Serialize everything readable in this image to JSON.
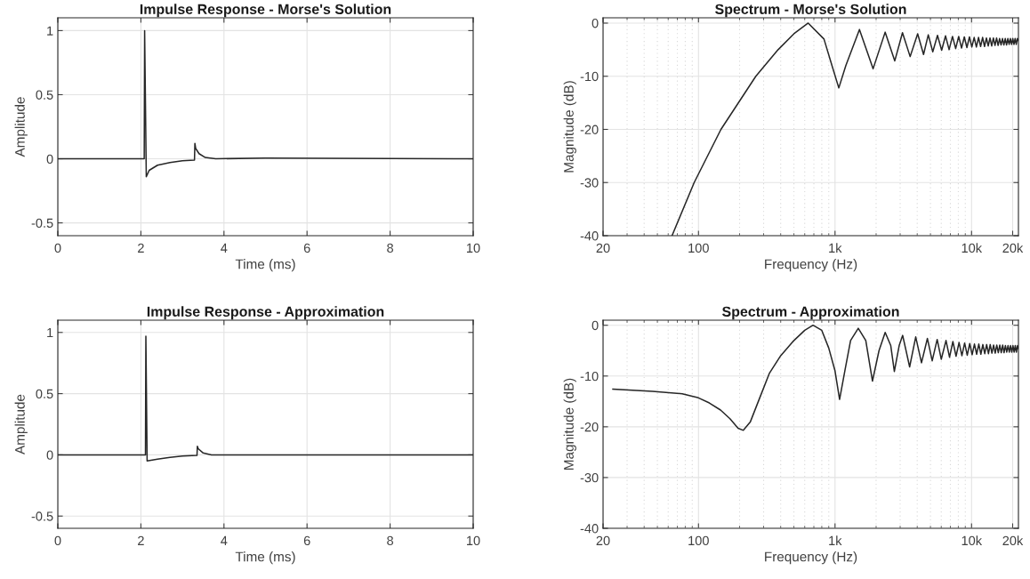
{
  "chart_data": [
    {
      "type": "line",
      "title": "Impulse Response - Morse's Solution",
      "xlabel": "Time (ms)",
      "ylabel": "Amplitude",
      "grid": true,
      "xlim": [
        0,
        10
      ],
      "xticks": [
        0,
        2,
        4,
        6,
        8,
        10
      ],
      "ylim": [
        -0.6,
        1.1
      ],
      "yticks": [
        -0.5,
        0,
        0.5,
        1
      ],
      "series": [
        {
          "color": "#262626",
          "x": [
            0,
            2.08,
            2.09,
            2.13,
            2.2,
            2.4,
            2.7,
            3.0,
            3.29,
            3.3,
            3.32,
            3.4,
            3.55,
            3.8,
            5,
            10
          ],
          "values": [
            0,
            0,
            1,
            -0.14,
            -0.09,
            -0.05,
            -0.03,
            -0.015,
            -0.01,
            0.12,
            0.08,
            0.04,
            0.01,
            0,
            0.005,
            0
          ]
        }
      ]
    },
    {
      "type": "line",
      "title": "Spectrum - Morse's Solution",
      "xlabel": "Frequency (Hz)",
      "ylabel": "Magnitude (dB)",
      "grid": true,
      "log": "x",
      "xlim": [
        20,
        22050
      ],
      "xticks": [
        {
          "value": 20,
          "label": "20"
        },
        100,
        {
          "value": 1000,
          "label": "1k"
        },
        {
          "value": 10000,
          "label": "10k"
        },
        {
          "value": 20000,
          "label": "20k"
        }
      ],
      "ylim": [
        -40,
        1
      ],
      "yticks": [
        -40,
        -30,
        -20,
        -10,
        0
      ],
      "series": [
        {
          "color": "#262626",
          "x": [
            64,
            93,
            146,
            263,
            383,
            500,
            636,
            830,
            950,
            1066,
            1200,
            1510,
            1900,
            2330,
            2740,
            3120,
            3550,
            4030,
            4450,
            4820,
            5200,
            5630,
            6040,
            6450,
            6850,
            7250,
            7650,
            8050,
            8450,
            8850,
            9250,
            9650,
            10050,
            10450,
            10850,
            11250,
            11650,
            12050,
            12450,
            12850,
            13250,
            13650,
            14050,
            14450,
            14850,
            15250,
            15650,
            16050,
            16450,
            16850,
            17250,
            17650,
            18050,
            18450,
            18850,
            19250,
            19650,
            20050,
            20450,
            20850,
            21250,
            21650,
            22050
          ],
          "values": [
            -40,
            -30,
            -20,
            -10,
            -5,
            -2,
            0,
            -3,
            -8,
            -12.2,
            -8,
            -1.2,
            -8.6,
            -1.7,
            -7.1,
            -1.8,
            -6.3,
            -2,
            -5.9,
            -2.2,
            -5.4,
            -2.3,
            -5.1,
            -2.4,
            -5.0,
            -2.5,
            -4.8,
            -2.5,
            -4.7,
            -2.6,
            -4.6,
            -2.6,
            -4.5,
            -2.7,
            -4.5,
            -2.7,
            -4.4,
            -2.7,
            -4.4,
            -2.8,
            -4.3,
            -2.8,
            -4.3,
            -2.8,
            -4.2,
            -2.8,
            -4.2,
            -2.9,
            -4.1,
            -2.9,
            -4.1,
            -2.9,
            -4.1,
            -2.9,
            -4.0,
            -2.9,
            -4.0,
            -2.9,
            -4.0,
            -2.9,
            -4.0,
            -2.9,
            -3.3
          ]
        }
      ]
    },
    {
      "type": "line",
      "title": "Impulse Response - Approximation",
      "xlabel": "Time (ms)",
      "ylabel": "Amplitude",
      "grid": true,
      "xlim": [
        0,
        10
      ],
      "xticks": [
        0,
        2,
        4,
        6,
        8,
        10
      ],
      "ylim": [
        -0.6,
        1.1
      ],
      "yticks": [
        -0.5,
        0,
        0.5,
        1
      ],
      "series": [
        {
          "color": "#262626",
          "x": [
            0,
            2.11,
            2.12,
            2.15,
            2.4,
            2.7,
            3.0,
            3.35,
            3.36,
            3.38,
            3.5,
            3.7,
            5,
            10
          ],
          "values": [
            0,
            0,
            0.97,
            -0.05,
            -0.035,
            -0.02,
            -0.01,
            -0.005,
            0.07,
            0.05,
            0.015,
            0,
            0,
            0
          ]
        }
      ]
    },
    {
      "type": "line",
      "title": "Spectrum - Approximation",
      "xlabel": "Frequency (Hz)",
      "ylabel": "Magnitude (dB)",
      "grid": true,
      "log": "x",
      "xlim": [
        20,
        22050
      ],
      "xticks": [
        {
          "value": 20,
          "label": "20"
        },
        100,
        {
          "value": 1000,
          "label": "1k"
        },
        {
          "value": 10000,
          "label": "10k"
        },
        {
          "value": 20000,
          "label": "20k"
        }
      ],
      "ylim": [
        -40,
        1
      ],
      "yticks": [
        -40,
        -30,
        -20,
        -10,
        0
      ],
      "series": [
        {
          "color": "#262626",
          "x": [
            23.6,
            46,
            76,
            100,
            120,
            145,
            170,
            195,
            213,
            240,
            280,
            330,
            400,
            500,
            600,
            690,
            800,
            900,
            1000,
            1080,
            1180,
            1300,
            1480,
            1680,
            1880,
            2100,
            2330,
            2560,
            2720,
            2950,
            3130,
            3520,
            3900,
            4300,
            4750,
            5150,
            5600,
            6000,
            6500,
            6900,
            7300,
            7700,
            8100,
            8500,
            8900,
            9300,
            9700,
            10100,
            10500,
            10900,
            11300,
            11700,
            12100,
            12500,
            12900,
            13300,
            13700,
            14100,
            14500,
            14900,
            15300,
            15700,
            16100,
            16500,
            16900,
            17300,
            17700,
            18100,
            18500,
            18900,
            19300,
            19700,
            20100,
            20500,
            20900,
            21300,
            21700,
            22050
          ],
          "values": [
            -12.6,
            -13,
            -13.5,
            -14.3,
            -15.3,
            -16.7,
            -18.4,
            -20.3,
            -20.7,
            -19,
            -14.4,
            -9.5,
            -6,
            -3,
            -1,
            0,
            -1,
            -4.5,
            -9,
            -14.6,
            -9,
            -3,
            -0.6,
            -3,
            -11,
            -5,
            -1.4,
            -4,
            -9.1,
            -4,
            -2,
            -8.2,
            -2.3,
            -7.4,
            -2.6,
            -7,
            -2.8,
            -6.7,
            -3,
            -6.3,
            -3.2,
            -6.1,
            -3.4,
            -6.0,
            -3.5,
            -5.9,
            -3.6,
            -5.8,
            -3.7,
            -5.7,
            -3.7,
            -5.7,
            -3.8,
            -5.6,
            -3.8,
            -5.6,
            -3.8,
            -5.5,
            -3.9,
            -5.5,
            -3.9,
            -5.4,
            -3.9,
            -5.4,
            -3.9,
            -5.4,
            -4.0,
            -5.3,
            -4.0,
            -5.3,
            -4.0,
            -5.3,
            -4.0,
            -5.3,
            -4.0,
            -5.3,
            -4.0,
            -4.6
          ]
        }
      ]
    }
  ]
}
